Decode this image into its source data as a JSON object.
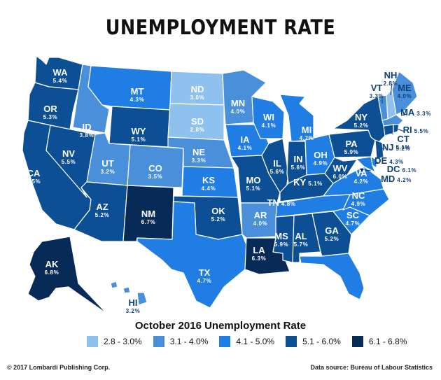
{
  "title": "UNEMPLOYMENT RATE",
  "legend": {
    "title": "October 2016 Unemployment Rate",
    "items": [
      {
        "label": "2.8 - 3.0%",
        "color": "#8fc1ef"
      },
      {
        "label": "3.1 - 4.0%",
        "color": "#4a8fd9"
      },
      {
        "label": "4.1 - 5.0%",
        "color": "#1f7de3"
      },
      {
        "label": "5.1 - 6.0%",
        "color": "#0d4f94"
      },
      {
        "label": "6.1 - 6.8%",
        "color": "#082a57"
      }
    ]
  },
  "credit": "© 2017 Lombardi Publishing Corp.",
  "source": "Data source: Bureau of Labour Statistics",
  "states": [
    {
      "abbr": "WA",
      "rate": "5.4%"
    },
    {
      "abbr": "OR",
      "rate": "5.3%"
    },
    {
      "abbr": "CA",
      "rate": "5.5%"
    },
    {
      "abbr": "NV",
      "rate": "5.5%"
    },
    {
      "abbr": "ID",
      "rate": "3.8%"
    },
    {
      "abbr": "MT",
      "rate": "4.3%"
    },
    {
      "abbr": "WY",
      "rate": "5.1%"
    },
    {
      "abbr": "UT",
      "rate": "3.2%"
    },
    {
      "abbr": "CO",
      "rate": "3.5%"
    },
    {
      "abbr": "AZ",
      "rate": "5.2%"
    },
    {
      "abbr": "NM",
      "rate": "6.7%"
    },
    {
      "abbr": "ND",
      "rate": "3.0%"
    },
    {
      "abbr": "SD",
      "rate": "2.8%"
    },
    {
      "abbr": "NE",
      "rate": "3.3%"
    },
    {
      "abbr": "KS",
      "rate": "4.4%"
    },
    {
      "abbr": "OK",
      "rate": "5.2%"
    },
    {
      "abbr": "TX",
      "rate": "4.7%"
    },
    {
      "abbr": "MN",
      "rate": "4.0%"
    },
    {
      "abbr": "IA",
      "rate": "4.1%"
    },
    {
      "abbr": "MO",
      "rate": "5.1%"
    },
    {
      "abbr": "AR",
      "rate": "4.0%"
    },
    {
      "abbr": "LA",
      "rate": "6.3%"
    },
    {
      "abbr": "WI",
      "rate": "4.1%"
    },
    {
      "abbr": "IL",
      "rate": "5.6%"
    },
    {
      "abbr": "MI",
      "rate": "4.7%"
    },
    {
      "abbr": "IN",
      "rate": "5.6%"
    },
    {
      "abbr": "OH",
      "rate": "4.9%"
    },
    {
      "abbr": "KY",
      "rate": "5.1%"
    },
    {
      "abbr": "TN",
      "rate": "4.8%"
    },
    {
      "abbr": "MS",
      "rate": "5.9%"
    },
    {
      "abbr": "AL",
      "rate": "5.7%"
    },
    {
      "abbr": "GA",
      "rate": "5.2%"
    },
    {
      "abbr": "FL",
      "rate": "4.8%"
    },
    {
      "abbr": "SC",
      "rate": "4.7%"
    },
    {
      "abbr": "NC",
      "rate": "4.9%"
    },
    {
      "abbr": "VA",
      "rate": "4.2%"
    },
    {
      "abbr": "WV",
      "rate": "6.0%"
    },
    {
      "abbr": "PA",
      "rate": "5.9%"
    },
    {
      "abbr": "NY",
      "rate": "5.2%"
    },
    {
      "abbr": "VT",
      "rate": "3.3%"
    },
    {
      "abbr": "NH",
      "rate": "2.8%"
    },
    {
      "abbr": "ME",
      "rate": "4.0%"
    },
    {
      "abbr": "MA",
      "rate": "3.3%"
    },
    {
      "abbr": "RI",
      "rate": "5.5%"
    },
    {
      "abbr": "CT",
      "rate": "5.1%"
    },
    {
      "abbr": "NJ",
      "rate": "5.2%"
    },
    {
      "abbr": "DE",
      "rate": "4.3%"
    },
    {
      "abbr": "DC",
      "rate": "6.1%"
    },
    {
      "abbr": "MD",
      "rate": "4.2%"
    },
    {
      "abbr": "AK",
      "rate": "6.8%"
    },
    {
      "abbr": "HI",
      "rate": "3.2%"
    }
  ]
}
